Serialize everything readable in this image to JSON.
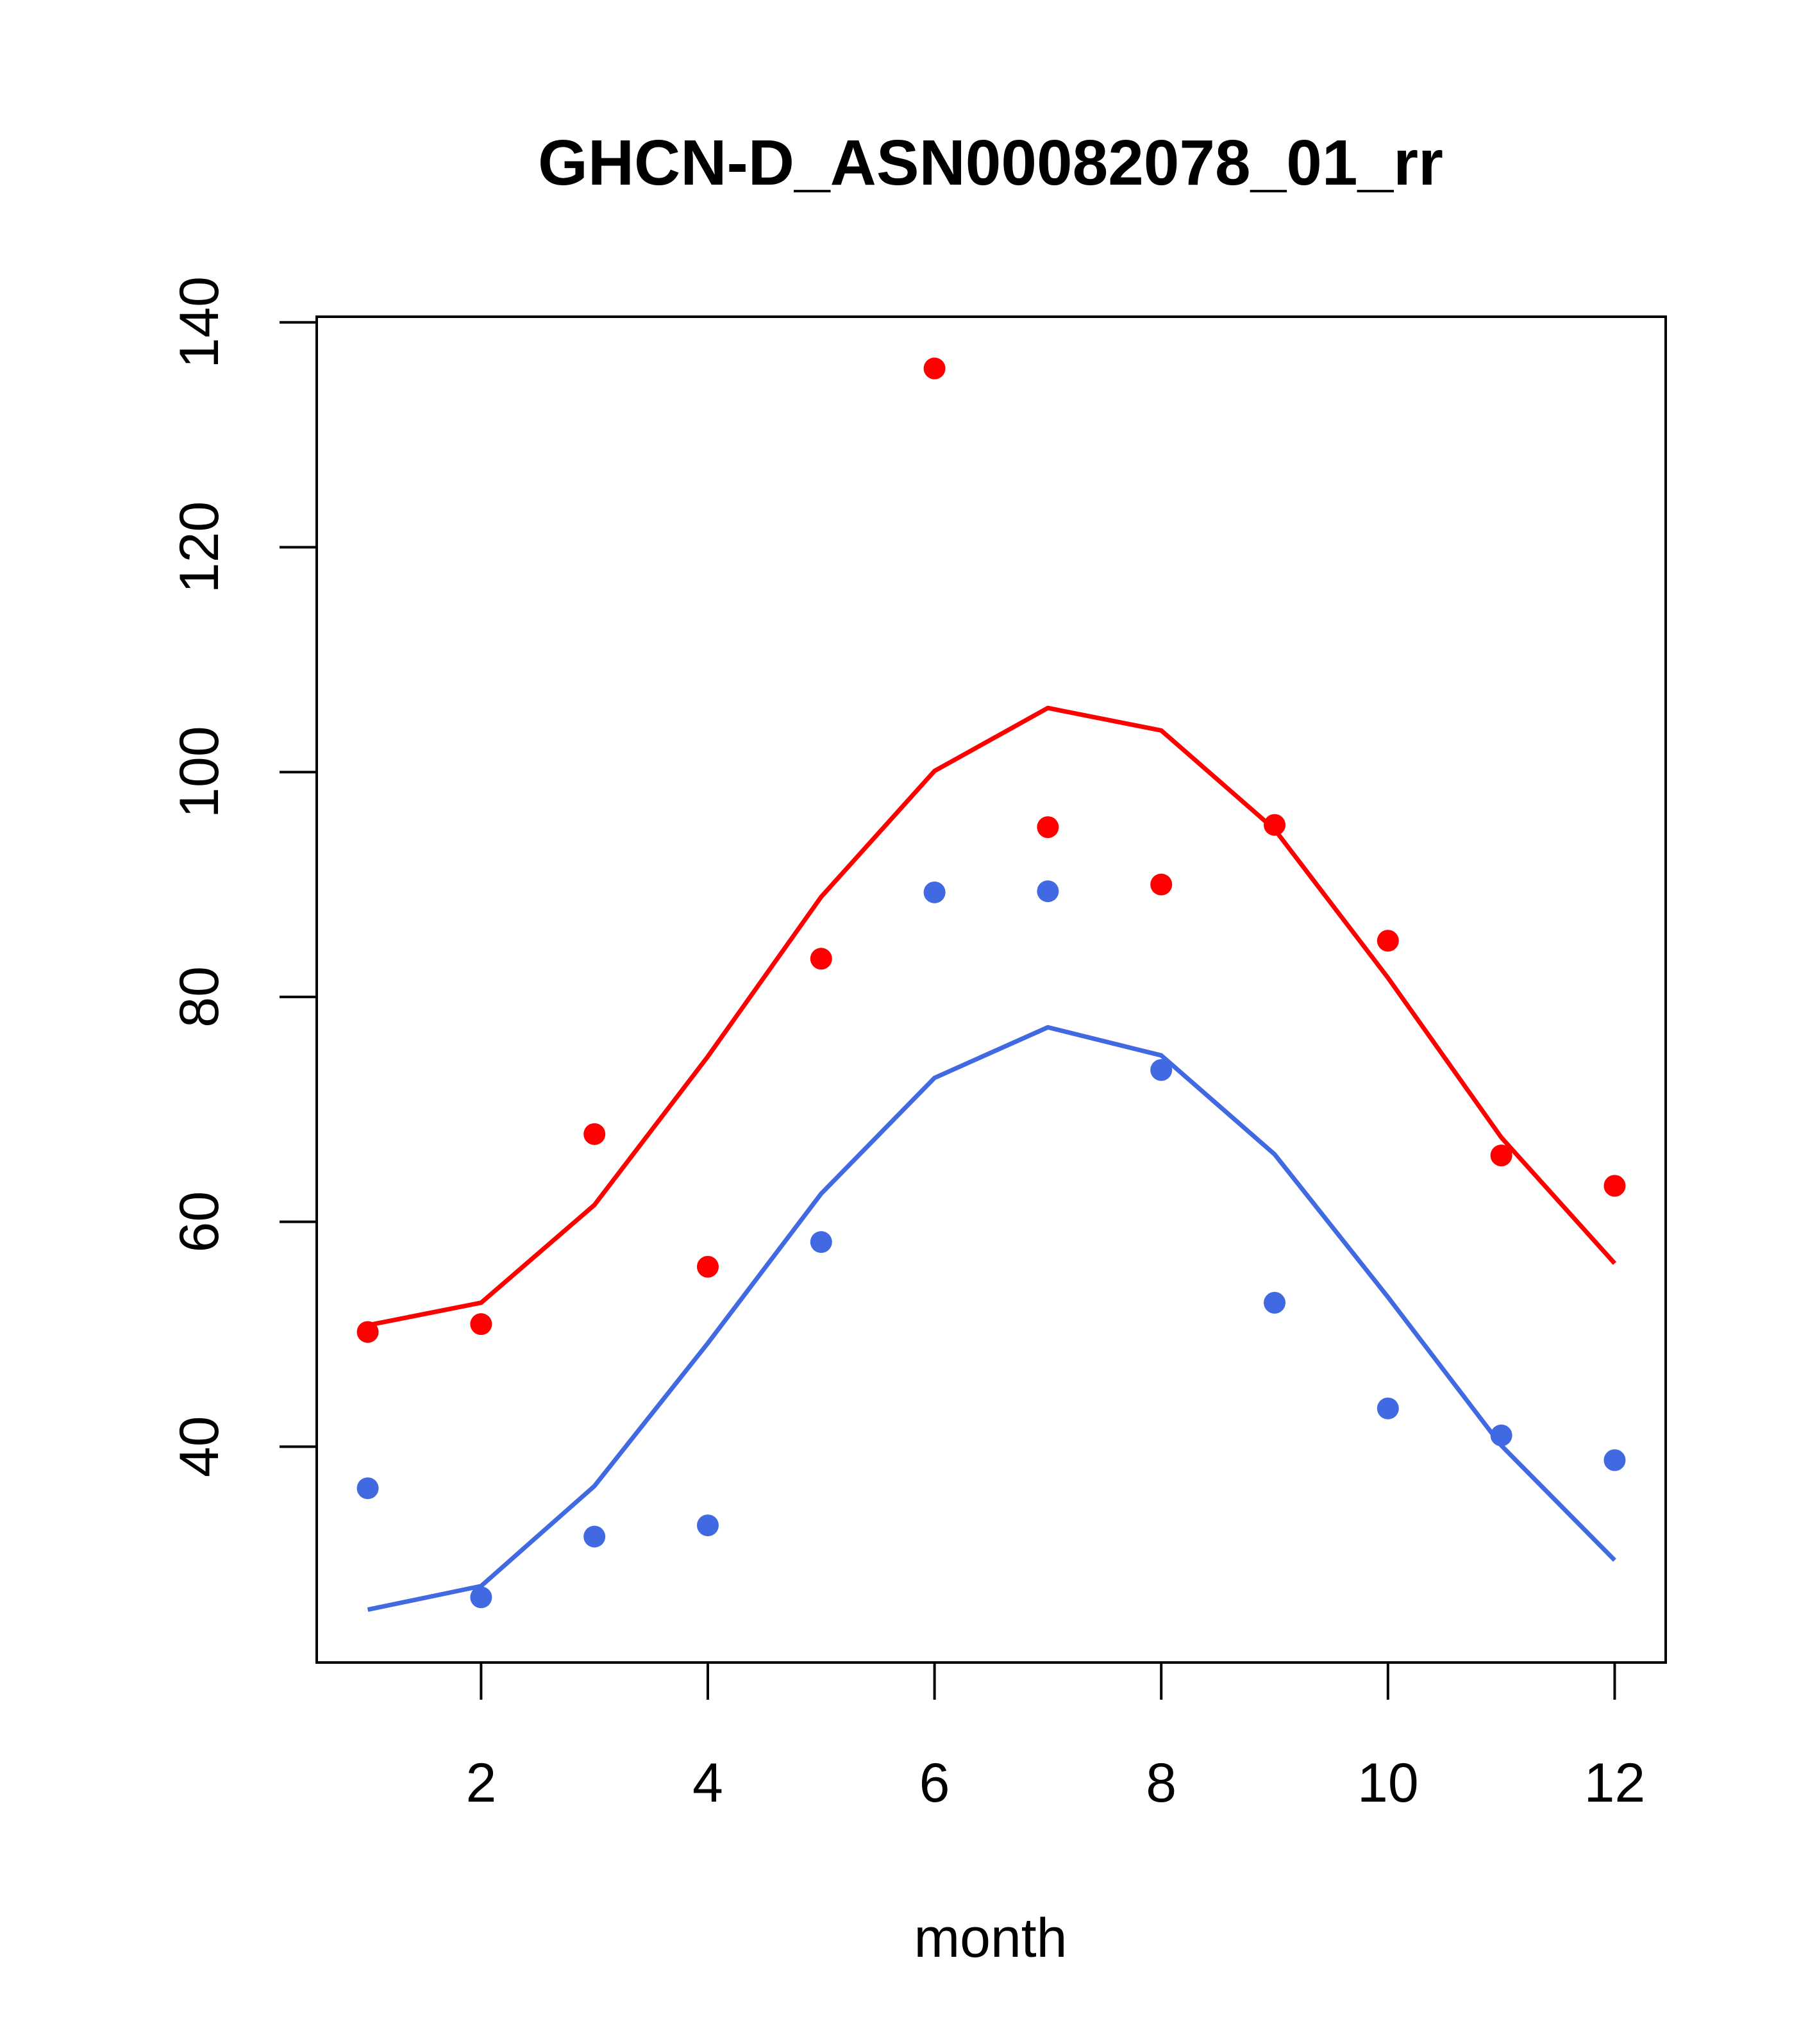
{
  "chart_data": {
    "type": "scatter",
    "title": "GHCN-D_ASN00082078_01_rr",
    "xlabel": "month",
    "ylabel": "",
    "xlim": [
      0.55,
      12.45
    ],
    "ylim": [
      20.8,
      140.5
    ],
    "x_ticks": [
      2,
      4,
      6,
      8,
      10,
      12
    ],
    "y_ticks": [
      40,
      60,
      80,
      100,
      120,
      140
    ],
    "grid": false,
    "series": [
      {
        "color": "#ff0000",
        "kind": "points",
        "x": [
          1,
          2,
          3,
          4,
          5,
          6,
          7,
          8,
          9,
          10,
          11,
          12
        ],
        "y": [
          50.2,
          50.9,
          67.8,
          56.0,
          83.4,
          135.9,
          95.1,
          90.0,
          95.3,
          85.0,
          65.9,
          63.2
        ]
      },
      {
        "color": "#ff0000",
        "kind": "line",
        "x": [
          1,
          2,
          3,
          4,
          5,
          6,
          7,
          8,
          9,
          10,
          11,
          12
        ],
        "y": [
          50.8,
          52.8,
          61.5,
          74.7,
          88.9,
          100.1,
          105.7,
          103.7,
          94.9,
          81.7,
          67.5,
          56.3
        ]
      },
      {
        "color": "#4169e1",
        "kind": "points",
        "x": [
          1,
          2,
          3,
          4,
          5,
          6,
          7,
          8,
          9,
          10,
          11,
          12
        ],
        "y": [
          36.3,
          26.6,
          32.0,
          33.0,
          58.2,
          89.3,
          89.4,
          73.5,
          52.8,
          43.4,
          41.0,
          38.8
        ]
      },
      {
        "color": "#4169e1",
        "kind": "line",
        "x": [
          1,
          2,
          3,
          4,
          5,
          6,
          7,
          8,
          9,
          10,
          11,
          12
        ],
        "y": [
          25.5,
          27.6,
          36.5,
          49.2,
          62.5,
          72.8,
          77.3,
          74.8,
          66.0,
          53.3,
          40.1,
          29.9
        ]
      }
    ]
  }
}
